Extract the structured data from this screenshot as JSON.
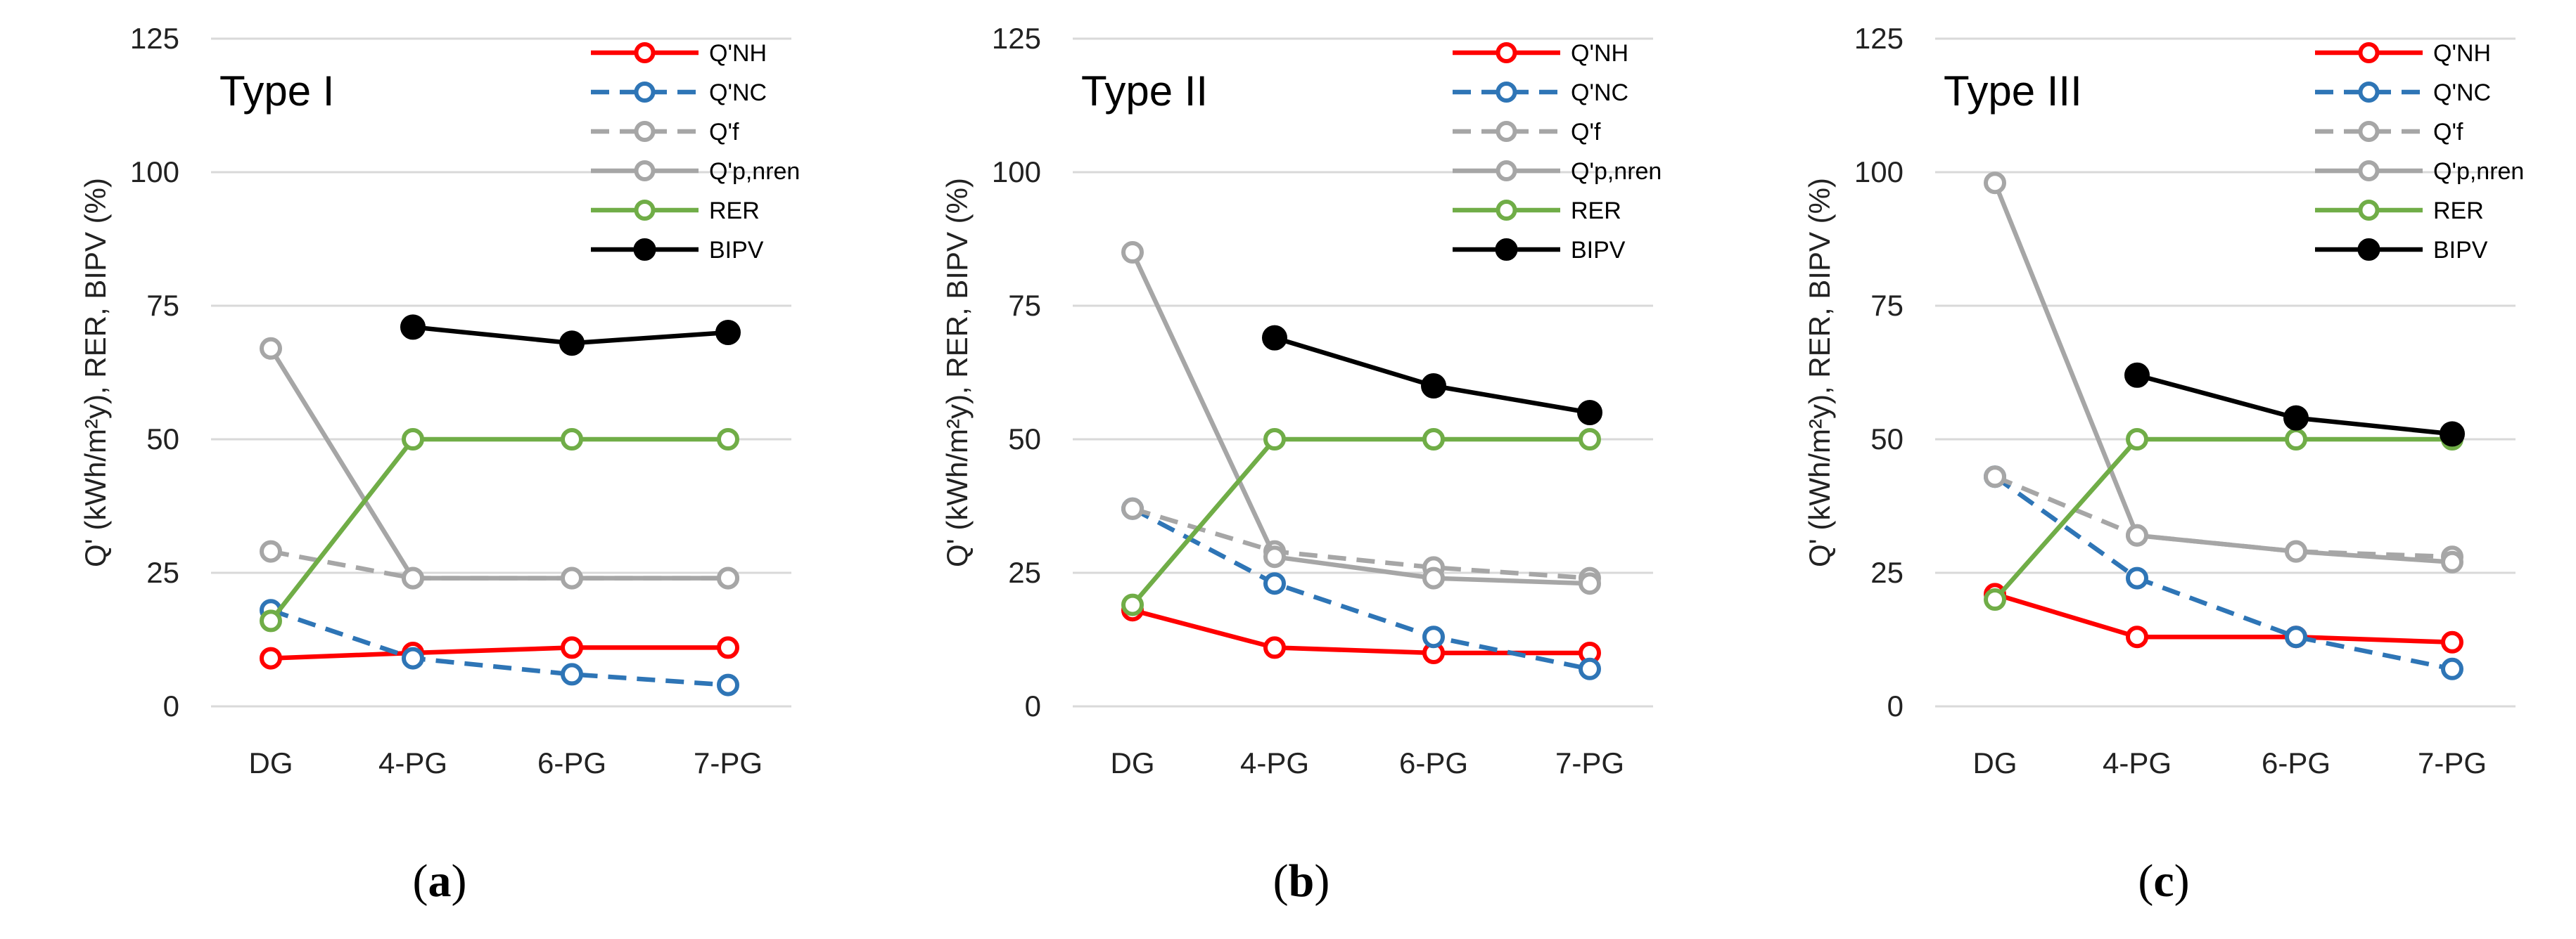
{
  "colors": {
    "Q'NH": "#ff0000",
    "Q'NC": "#2e75b6",
    "Q'f": "#a6a6a6",
    "Q'p,nren": "#a6a6a6",
    "RER": "#70ad47",
    "BIPV": "#000000",
    "grid": "#d9d9d9",
    "axis_text": "#222222"
  },
  "chart_data": [
    {
      "type": "line",
      "panel_label_prefix": "(",
      "panel_label": "a",
      "panel_label_suffix": ")",
      "title": "Type I",
      "xlabel": "",
      "ylabel": "Q' (kWh/m²y),  RER, BIPV (%)",
      "ylim": [
        0,
        125
      ],
      "yticks": [
        "0",
        "25",
        "50",
        "75",
        "100",
        "125"
      ],
      "categories": [
        "DG",
        "4-PG",
        "6-PG",
        "7-PG"
      ],
      "legend_position": "top-right",
      "series": [
        {
          "name": "Q'NH",
          "values": [
            9,
            10,
            11,
            11
          ]
        },
        {
          "name": "Q'NC",
          "values": [
            18,
            9,
            6,
            4
          ]
        },
        {
          "name": "Q'f",
          "values": [
            29,
            24,
            24,
            24
          ]
        },
        {
          "name": "Q'p,nren",
          "values": [
            67,
            24,
            24,
            24
          ]
        },
        {
          "name": "RER",
          "values": [
            16,
            50,
            50,
            50
          ]
        },
        {
          "name": "BIPV",
          "values": [
            null,
            71,
            68,
            70
          ]
        }
      ]
    },
    {
      "type": "line",
      "panel_label_prefix": "(",
      "panel_label": "b",
      "panel_label_suffix": ")",
      "title": "Type II",
      "xlabel": "",
      "ylabel": "Q' (kWh/m²y),  RER, BIPV (%)",
      "ylim": [
        0,
        125
      ],
      "yticks": [
        "0",
        "25",
        "50",
        "75",
        "100",
        "125"
      ],
      "categories": [
        "DG",
        "4-PG",
        "6-PG",
        "7-PG"
      ],
      "legend_position": "top-right",
      "series": [
        {
          "name": "Q'NH",
          "values": [
            18,
            11,
            10,
            10
          ]
        },
        {
          "name": "Q'NC",
          "values": [
            37,
            23,
            13,
            7
          ]
        },
        {
          "name": "Q'f",
          "values": [
            37,
            29,
            26,
            24
          ]
        },
        {
          "name": "Q'p,nren",
          "values": [
            85,
            28,
            24,
            23
          ]
        },
        {
          "name": "RER",
          "values": [
            19,
            50,
            50,
            50
          ]
        },
        {
          "name": "BIPV",
          "values": [
            null,
            69,
            60,
            55
          ]
        }
      ]
    },
    {
      "type": "line",
      "panel_label_prefix": "(",
      "panel_label": "c",
      "panel_label_suffix": ")",
      "title": "Type III",
      "xlabel": "",
      "ylabel": "Q' (kWh/m²y),  RER, BIPV (%)",
      "ylim": [
        0,
        125
      ],
      "yticks": [
        "0",
        "25",
        "50",
        "75",
        "100",
        "125"
      ],
      "categories": [
        "DG",
        "4-PG",
        "6-PG",
        "7-PG"
      ],
      "legend_position": "top-right",
      "series": [
        {
          "name": "Q'NH",
          "values": [
            21,
            13,
            13,
            12
          ]
        },
        {
          "name": "Q'NC",
          "values": [
            43,
            24,
            13,
            7
          ]
        },
        {
          "name": "Q'f",
          "values": [
            43,
            32,
            29,
            28
          ]
        },
        {
          "name": "Q'p,nren",
          "values": [
            98,
            32,
            29,
            27
          ]
        },
        {
          "name": "RER",
          "values": [
            20,
            50,
            50,
            50
          ]
        },
        {
          "name": "BIPV",
          "values": [
            null,
            62,
            54,
            51
          ]
        }
      ]
    }
  ]
}
